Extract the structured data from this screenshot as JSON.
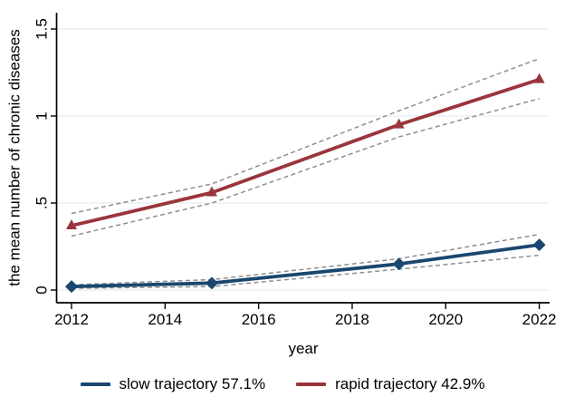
{
  "figure": {
    "background": "#ffffff"
  },
  "chart_data": {
    "type": "line",
    "title": "",
    "xlabel": "year",
    "ylabel": "the mean number of chronic diseases",
    "x": [
      2012,
      2015,
      2019,
      2022
    ],
    "xlim": [
      2012,
      2022
    ],
    "ylim": [
      0,
      1.5
    ],
    "xticks": {
      "values": [
        2012,
        2014,
        2016,
        2018,
        2020,
        2022
      ],
      "labels": [
        "2012",
        "2014",
        "2016",
        "2018",
        "2020",
        "2022"
      ]
    },
    "yticks": {
      "values": [
        0,
        0.5,
        1,
        1.5
      ],
      "labels": [
        "0",
        ".5",
        "1",
        "1.5"
      ]
    },
    "grid": "horizontal",
    "grid_color": "#e4ecf0",
    "axis_color": "#000000",
    "ci_color": "#8f8f8f",
    "ci_style": "dashed",
    "series": [
      {
        "name": "slow trajectory 57.1%",
        "color": "#1a476f",
        "marker": "diamond",
        "values": [
          0.02,
          0.04,
          0.15,
          0.26
        ],
        "ci_upper": [
          0.03,
          0.06,
          0.18,
          0.32
        ],
        "ci_lower": [
          0.01,
          0.02,
          0.12,
          0.2
        ]
      },
      {
        "name": "rapid trajectory 42.9%",
        "color": "#9b353c",
        "marker": "triangle",
        "values": [
          0.37,
          0.56,
          0.95,
          1.21
        ],
        "ci_upper": [
          0.44,
          0.61,
          1.03,
          1.33
        ],
        "ci_lower": [
          0.31,
          0.5,
          0.88,
          1.1
        ]
      }
    ],
    "legend": {
      "position": "bottom",
      "items": [
        "slow trajectory 57.1%",
        "rapid trajectory 42.9%"
      ]
    }
  }
}
